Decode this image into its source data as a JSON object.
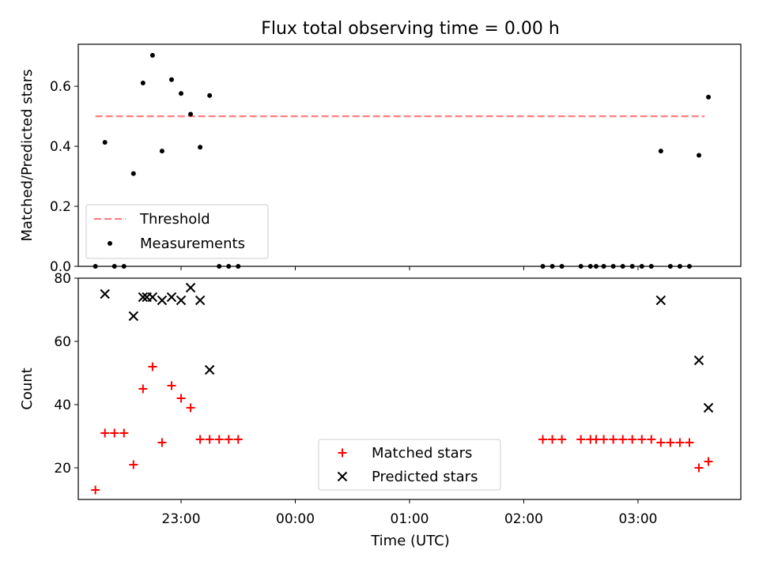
{
  "figure": {
    "title": "Flux total observing time = 0.00 h",
    "xlabel": "Time (UTC)",
    "x_tick_labels": [
      "23:00",
      "00:00",
      "01:00",
      "02:00",
      "03:00"
    ]
  },
  "chart_data": [
    {
      "type": "scatter",
      "title": "Flux total observing time = 0.00 h",
      "xlabel": "Time (UTC)",
      "ylabel": "Matched/Predicted stars",
      "xlim": [
        "22:06",
        "03:54"
      ],
      "ylim": [
        0,
        0.74
      ],
      "yticks": [
        0.0,
        0.2,
        0.4,
        0.6
      ],
      "legend_position": "lower-left",
      "grid": false,
      "series": [
        {
          "name": "Threshold",
          "kind": "line",
          "style": "dashed",
          "color": "#ff7f7f",
          "points": [
            [
              "22:15",
              0.5
            ],
            [
              "03:35",
              0.5
            ]
          ]
        },
        {
          "name": "Measurements",
          "kind": "scatter",
          "marker": "dot",
          "color": "#000000",
          "points": [
            [
              "22:15",
              0.0
            ],
            [
              "22:20",
              0.413
            ],
            [
              "22:25",
              0.0
            ],
            [
              "22:30",
              0.0
            ],
            [
              "22:35",
              0.309
            ],
            [
              "22:40",
              0.611
            ],
            [
              "22:45",
              0.703
            ],
            [
              "22:50",
              0.384
            ],
            [
              "22:55",
              0.622
            ],
            [
              "23:00",
              0.576
            ],
            [
              "23:05",
              0.507
            ],
            [
              "23:10",
              0.397
            ],
            [
              "23:15",
              0.569
            ],
            [
              "23:20",
              0.0
            ],
            [
              "23:25",
              0.0
            ],
            [
              "23:30",
              0.0
            ],
            [
              "02:10",
              0.0
            ],
            [
              "02:15",
              0.0
            ],
            [
              "02:20",
              0.0
            ],
            [
              "02:30",
              0.0
            ],
            [
              "02:35",
              0.0
            ],
            [
              "02:38",
              0.0
            ],
            [
              "02:42",
              0.0
            ],
            [
              "02:47",
              0.0
            ],
            [
              "02:52",
              0.0
            ],
            [
              "02:57",
              0.0
            ],
            [
              "03:02",
              0.0
            ],
            [
              "03:07",
              0.0
            ],
            [
              "03:12",
              0.384
            ],
            [
              "03:17",
              0.0
            ],
            [
              "03:22",
              0.0
            ],
            [
              "03:27",
              0.0
            ],
            [
              "03:32",
              0.37
            ],
            [
              "03:37",
              0.564
            ]
          ]
        }
      ]
    },
    {
      "type": "scatter",
      "xlabel": "Time (UTC)",
      "ylabel": "Count",
      "xlim": [
        "22:06",
        "03:54"
      ],
      "ylim": [
        10,
        80
      ],
      "yticks": [
        20,
        40,
        60,
        80
      ],
      "legend_position": "lower-center",
      "grid": false,
      "series": [
        {
          "name": "Matched stars",
          "marker": "plus",
          "color": "#ff0000",
          "points": [
            [
              "22:15",
              13
            ],
            [
              "22:20",
              31
            ],
            [
              "22:25",
              31
            ],
            [
              "22:30",
              31
            ],
            [
              "22:35",
              21
            ],
            [
              "22:40",
              45
            ],
            [
              "22:45",
              52
            ],
            [
              "22:50",
              28
            ],
            [
              "22:55",
              46
            ],
            [
              "23:00",
              42
            ],
            [
              "23:05",
              39
            ],
            [
              "23:10",
              29
            ],
            [
              "23:15",
              29
            ],
            [
              "23:20",
              29
            ],
            [
              "23:25",
              29
            ],
            [
              "23:30",
              29
            ],
            [
              "02:10",
              29
            ],
            [
              "02:15",
              29
            ],
            [
              "02:20",
              29
            ],
            [
              "02:30",
              29
            ],
            [
              "02:35",
              29
            ],
            [
              "02:38",
              29
            ],
            [
              "02:42",
              29
            ],
            [
              "02:47",
              29
            ],
            [
              "02:52",
              29
            ],
            [
              "02:57",
              29
            ],
            [
              "03:02",
              29
            ],
            [
              "03:07",
              29
            ],
            [
              "03:12",
              28
            ],
            [
              "03:17",
              28
            ],
            [
              "03:22",
              28
            ],
            [
              "03:27",
              28
            ],
            [
              "03:32",
              20
            ],
            [
              "03:37",
              22
            ]
          ]
        },
        {
          "name": "Predicted stars",
          "marker": "x",
          "color": "#000000",
          "points": [
            [
              "22:20",
              75
            ],
            [
              "22:35",
              68
            ],
            [
              "22:40",
              74
            ],
            [
              "22:42",
              74
            ],
            [
              "22:45",
              74
            ],
            [
              "22:50",
              73
            ],
            [
              "22:55",
              74
            ],
            [
              "23:00",
              73
            ],
            [
              "23:05",
              77
            ],
            [
              "23:10",
              73
            ],
            [
              "23:15",
              51
            ],
            [
              "03:12",
              73
            ],
            [
              "03:32",
              54
            ],
            [
              "03:37",
              39
            ]
          ]
        }
      ]
    }
  ]
}
